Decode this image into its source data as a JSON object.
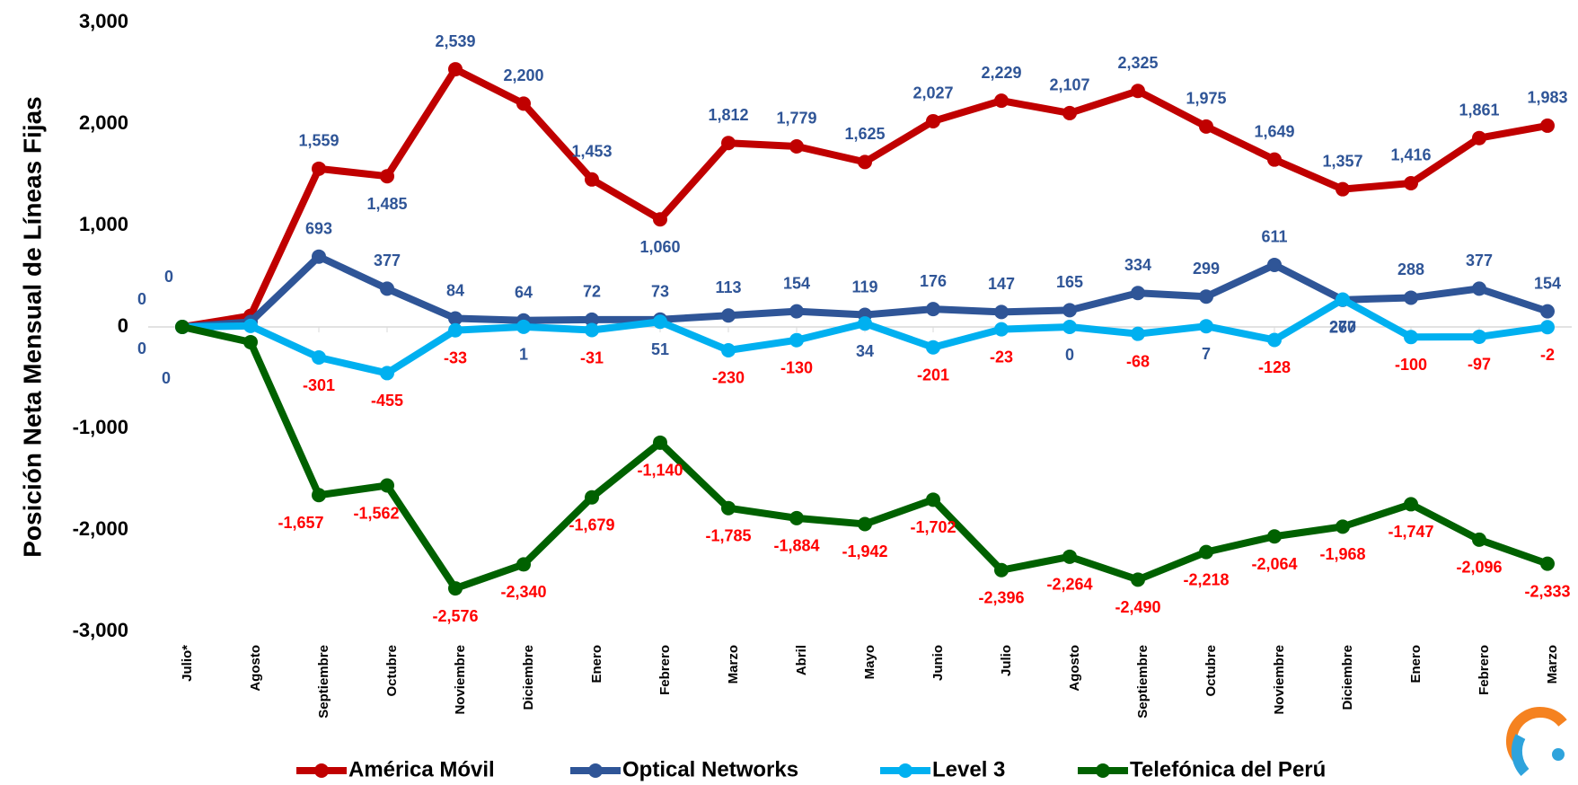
{
  "chart_data": {
    "type": "line",
    "y_label": "Posición Neta Mensual de Líneas Fijas",
    "categories": [
      "Julio*",
      "Agosto",
      "Septiembre",
      "Octubre",
      "Noviembre",
      "Diciembre",
      "Enero",
      "Febrero",
      "Marzo",
      "Abril",
      "Mayo",
      "Junio",
      "Julio",
      "Agosto",
      "Septiembre",
      "Octubre",
      "Noviembre",
      "Diciembre",
      "Enero",
      "Febrero",
      "Marzo"
    ],
    "series": [
      {
        "name": "América Móvil",
        "color": "#c00000",
        "values": [
          0,
          110,
          1559,
          1485,
          2539,
          2200,
          1453,
          1060,
          1812,
          1779,
          1625,
          2027,
          2229,
          2107,
          2325,
          1975,
          1649,
          1357,
          1416,
          1861,
          1983
        ],
        "value_labels": [
          "0",
          null,
          "1,559",
          "1,485",
          "2,539",
          "2,200",
          "1,453",
          "1,060",
          "1,812",
          "1,779",
          "1,625",
          "2,027",
          "2,229",
          "2,107",
          "2,325",
          "1,975",
          "1,649",
          "1,357",
          "1,416",
          "1,861",
          "1,983"
        ]
      },
      {
        "name": "Optical Networks",
        "color": "#2f5597",
        "values": [
          0,
          50,
          693,
          377,
          84,
          64,
          72,
          73,
          113,
          154,
          119,
          176,
          147,
          165,
          334,
          299,
          611,
          267,
          288,
          377,
          154
        ],
        "value_labels": [
          "0",
          null,
          "693",
          "377",
          "84",
          "64",
          "72",
          "73",
          "113",
          "154",
          "119",
          "176",
          "147",
          "165",
          "334",
          "299",
          "611",
          "267",
          "288",
          "377",
          "154"
        ]
      },
      {
        "name": "Level 3",
        "color": "#00b0f0",
        "values": [
          0,
          10,
          -301,
          -455,
          -33,
          1,
          -31,
          51,
          -230,
          -130,
          34,
          -201,
          -23,
          0,
          -68,
          7,
          -128,
          270,
          -100,
          -97,
          -2
        ],
        "value_labels": [
          "0",
          null,
          "-301",
          "-455",
          "-33",
          "1",
          "-31",
          "51",
          "-230",
          "-130",
          "34",
          "-201",
          "-23",
          "0",
          "-68",
          "7",
          "-128",
          "270",
          "-100",
          "-97",
          "-2"
        ]
      },
      {
        "name": "Telefónica del Perú",
        "color": "#006100",
        "values": [
          0,
          -150,
          -1657,
          -1562,
          -2576,
          -2340,
          -1679,
          -1140,
          -1785,
          -1884,
          -1942,
          -1702,
          -2396,
          -2264,
          -2490,
          -2218,
          -2064,
          -1968,
          -1747,
          -2096,
          -2333
        ],
        "value_labels": [
          "0",
          null,
          "-1,657",
          "-1,562",
          "-2,576",
          "-2,340",
          "-1,679",
          "-1,140",
          "-1,785",
          "-1,884",
          "-1,942",
          "-1,702",
          "-2,396",
          "-2,264",
          "-2,490",
          "-2,218",
          "-2,064",
          "-1,968",
          "-1,747",
          "-2,096",
          "-2,333"
        ]
      }
    ],
    "label_colors": {
      "positive": "#2f5597",
      "negative": "#ff0000"
    },
    "ylim": [
      -3000,
      3000
    ],
    "yticks": [
      {
        "value": -3000,
        "label": "-3,000"
      },
      {
        "value": -2000,
        "label": "-2,000"
      },
      {
        "value": -1000,
        "label": "-1,000"
      },
      0,
      {
        "value": 1000,
        "label": "1,000"
      },
      {
        "value": 2000,
        "label": "2,000"
      },
      {
        "value": 3000,
        "label": "3,000"
      }
    ],
    "legend": "bottom"
  }
}
